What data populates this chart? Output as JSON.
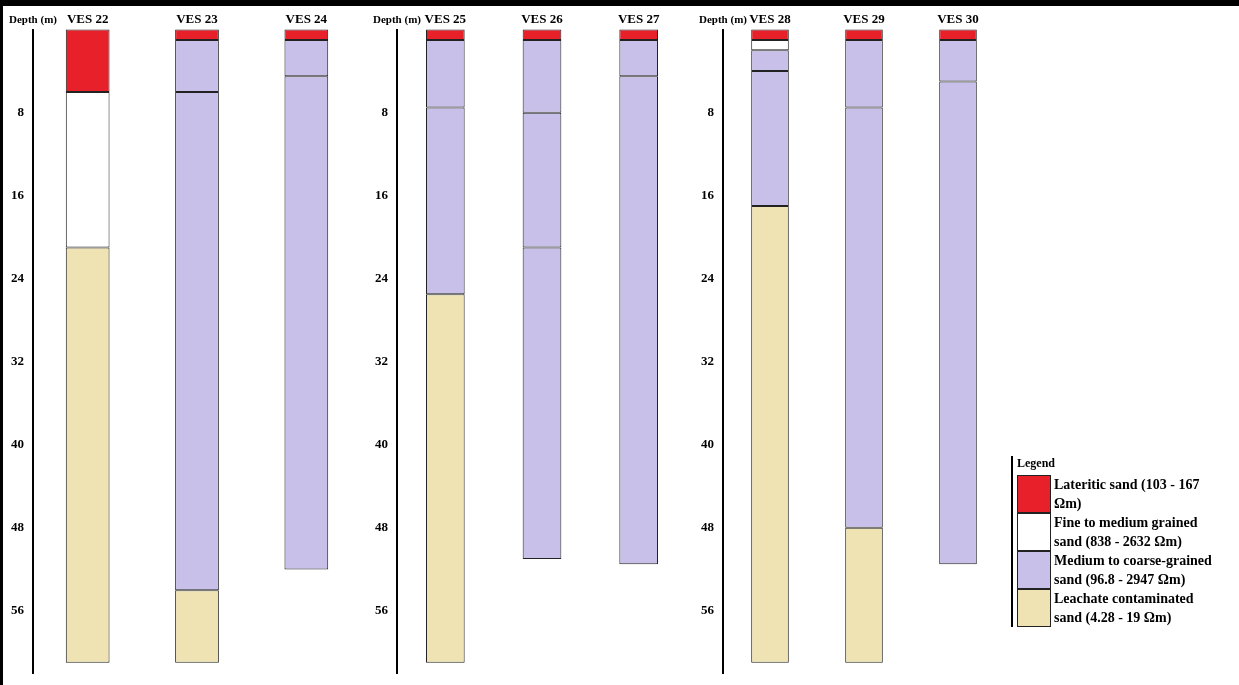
{
  "chart_data": [
    {
      "type": "bar",
      "stacked": true,
      "ylabel": "Depth (m)",
      "categories": [
        "VES 22",
        "VES 23",
        "VES 24"
      ],
      "ylim": [
        62,
        0
      ],
      "yticks": [
        8,
        16,
        24,
        32,
        40,
        48,
        56
      ],
      "grid": false,
      "legend": false,
      "series": [
        {
          "color": "#e8202a",
          "values": [
            6,
            1,
            1
          ]
        },
        {
          "color": "#ffffff",
          "values": [
            15,
            null,
            null
          ]
        },
        {
          "color": "#c8c0e8",
          "values": [
            null,
            5,
            3.5
          ]
        },
        {
          "color": "#c8c0e8",
          "values": [
            null,
            48,
            47.5
          ]
        },
        {
          "color": "#efe3b4",
          "values": [
            40,
            7,
            null
          ]
        }
      ]
    },
    {
      "type": "bar",
      "stacked": true,
      "ylabel": "Depth (m)",
      "categories": [
        "VES 25",
        "VES 26",
        "VES 27"
      ],
      "ylim": [
        62,
        0
      ],
      "yticks": [
        8,
        16,
        24,
        32,
        40,
        48,
        56
      ],
      "grid": false,
      "legend": false,
      "series": [
        {
          "color": "#e8202a",
          "values": [
            1,
            1,
            1
          ]
        },
        {
          "color": "#c8c0e8",
          "values": [
            6.5,
            7,
            3.5
          ]
        },
        {
          "color": "#c8c0e8",
          "values": [
            18,
            13,
            47
          ]
        },
        {
          "color": "#c8c0e8",
          "values": [
            null,
            30,
            null
          ]
        },
        {
          "color": "#efe3b4",
          "values": [
            35.5,
            null,
            null
          ]
        }
      ]
    },
    {
      "type": "bar",
      "stacked": true,
      "ylabel": "Depth (m)",
      "categories": [
        "VES 28",
        "VES 29",
        "VES 30"
      ],
      "ylim": [
        62,
        0
      ],
      "yticks": [
        8,
        16,
        24,
        32,
        40,
        48,
        56
      ],
      "grid": false,
      "legend": "bottom right",
      "legend_title": "Legend",
      "series": [
        {
          "name": "Lateritic sand (103 - 167 Ωm)",
          "color": "#e8202a",
          "values": [
            1,
            1,
            1
          ]
        },
        {
          "name": "Fine to medium grained sand (838 - 2632 Ωm)",
          "color": "#ffffff",
          "values": [
            1,
            null,
            null
          ]
        },
        {
          "name": "Medium to coarse-grained sand (96.8 - 2947 Ωm)",
          "color": "#c8c0e8",
          "values": [
            2,
            6.5,
            4
          ]
        },
        {
          "color": "#c8c0e8",
          "values": [
            13,
            40.5,
            46.5
          ]
        },
        {
          "name": "Leachate contaminated sand (4.28 - 19 Ωm)",
          "color": "#efe3b4",
          "values": [
            44,
            13,
            null
          ]
        }
      ]
    }
  ]
}
